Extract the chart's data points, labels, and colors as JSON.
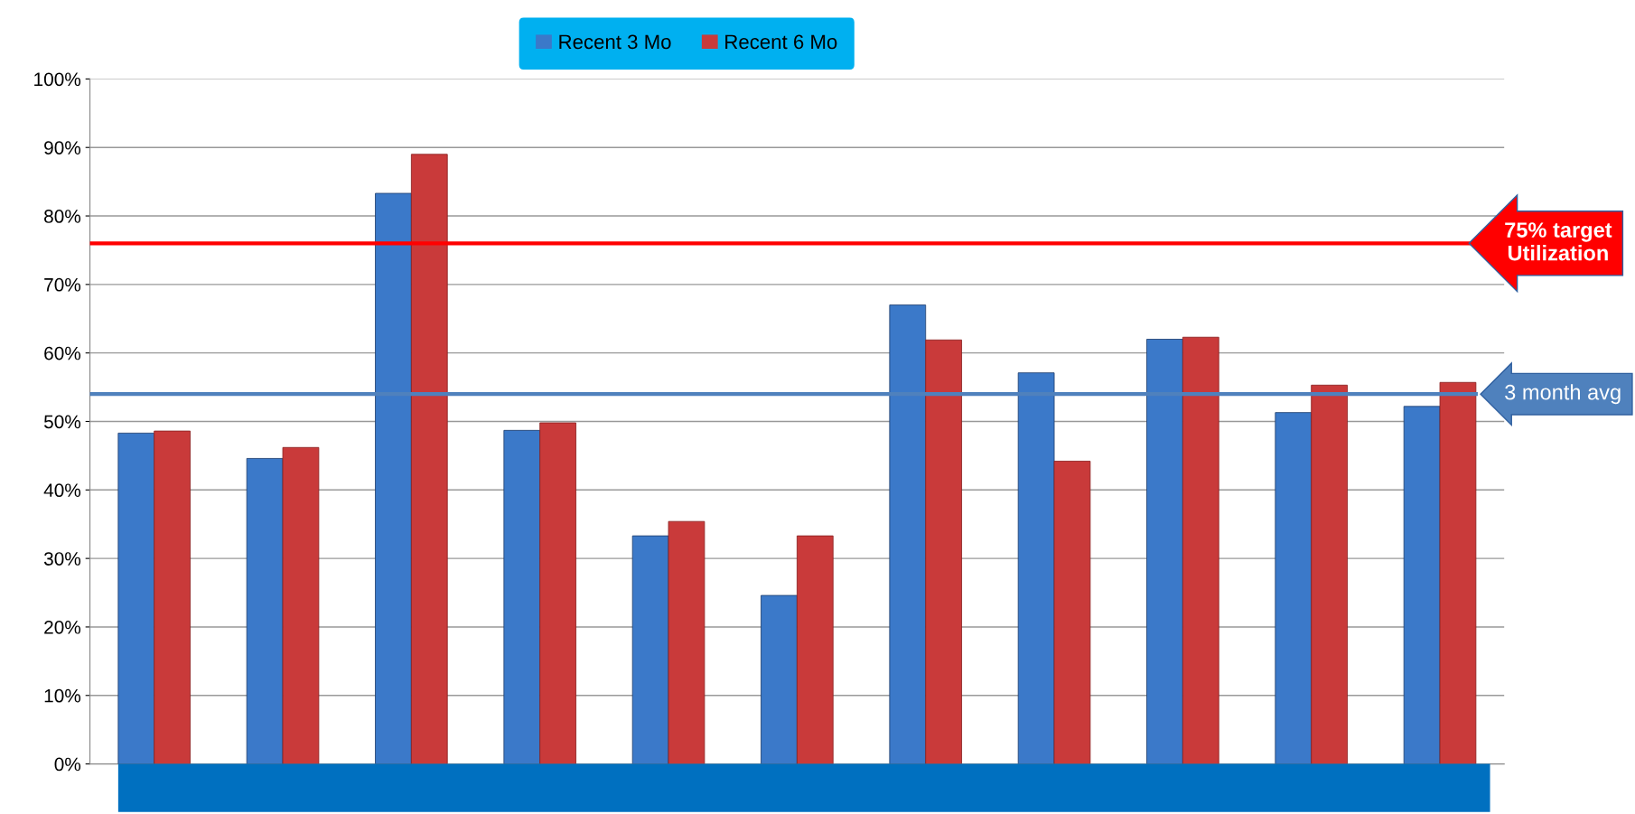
{
  "chart_data": {
    "type": "bar",
    "categories": [
      null,
      null,
      null,
      null,
      null,
      null,
      null,
      null,
      null,
      null,
      null
    ],
    "series": [
      {
        "name": "Recent 3 Mo",
        "color": "#3b79c9",
        "values": [
          48.3,
          44.6,
          83.3,
          48.7,
          33.3,
          24.6,
          67.0,
          57.1,
          62.0,
          51.3,
          52.2
        ]
      },
      {
        "name": "Recent 6 Mo",
        "color": "#c93a3a",
        "values": [
          48.6,
          46.2,
          89.0,
          49.8,
          35.4,
          33.3,
          61.9,
          44.2,
          62.3,
          55.3,
          55.7
        ]
      }
    ],
    "ylim": [
      0,
      100
    ],
    "yticks": [
      {
        "value": 0,
        "label": "0%"
      },
      {
        "value": 10,
        "label": "10%"
      },
      {
        "value": 20,
        "label": "20%"
      },
      {
        "value": 30,
        "label": "30%"
      },
      {
        "value": 40,
        "label": "40%"
      },
      {
        "value": 50,
        "label": "50%"
      },
      {
        "value": 60,
        "label": "60%"
      },
      {
        "value": 70,
        "label": "70%"
      },
      {
        "value": 80,
        "label": "80%"
      },
      {
        "value": 90,
        "label": "90%"
      },
      {
        "value": 100,
        "label": "100%"
      }
    ],
    "ref_lines": [
      {
        "axis": "y",
        "value": 76,
        "label": "75% target\nUtilization",
        "color": "#ff0000"
      },
      {
        "axis": "y",
        "value": 54,
        "label": "3 month avg",
        "color": "#4f81bd"
      }
    ],
    "grid": "y",
    "legend": "top"
  }
}
